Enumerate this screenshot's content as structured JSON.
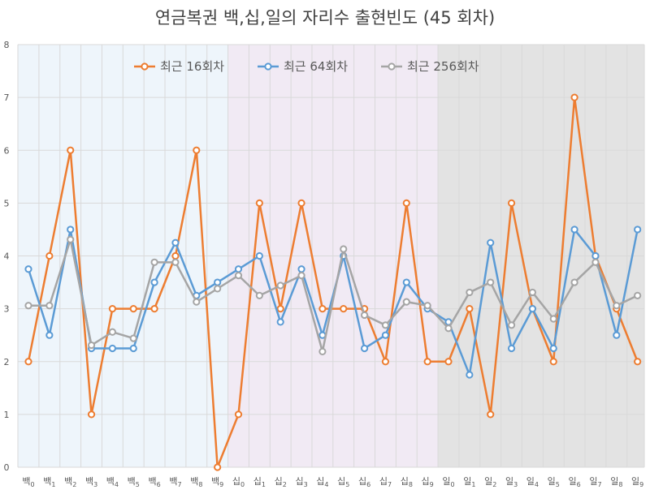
{
  "chart_data": {
    "type": "line",
    "title": "연금복권 백,십,일의 자리수 출현빈도 (45 회차)",
    "xlabel": "",
    "ylabel": "",
    "ylim": [
      0,
      8
    ],
    "yticks": [
      0,
      1,
      2,
      3,
      4,
      5,
      6,
      7,
      8
    ],
    "grid": true,
    "legend_position": "top",
    "categories": [
      "백0",
      "백1",
      "백2",
      "백3",
      "백4",
      "백5",
      "백6",
      "백7",
      "백8",
      "백9",
      "십0",
      "십1",
      "십2",
      "십3",
      "십4",
      "십5",
      "십6",
      "십7",
      "십8",
      "십9",
      "일0",
      "일1",
      "일2",
      "일3",
      "일4",
      "일5",
      "일6",
      "일7",
      "일8",
      "일9"
    ],
    "category_label_parts": [
      [
        "백",
        "0"
      ],
      [
        "백",
        "1"
      ],
      [
        "백",
        "2"
      ],
      [
        "백",
        "3"
      ],
      [
        "백",
        "4"
      ],
      [
        "백",
        "5"
      ],
      [
        "백",
        "6"
      ],
      [
        "백",
        "7"
      ],
      [
        "백",
        "8"
      ],
      [
        "백",
        "9"
      ],
      [
        "십",
        "0"
      ],
      [
        "십",
        "1"
      ],
      [
        "십",
        "2"
      ],
      [
        "십",
        "3"
      ],
      [
        "십",
        "4"
      ],
      [
        "십",
        "5"
      ],
      [
        "십",
        "6"
      ],
      [
        "십",
        "7"
      ],
      [
        "십",
        "8"
      ],
      [
        "십",
        "9"
      ],
      [
        "일",
        "0"
      ],
      [
        "일",
        "1"
      ],
      [
        "일",
        "2"
      ],
      [
        "일",
        "3"
      ],
      [
        "일",
        "4"
      ],
      [
        "일",
        "5"
      ],
      [
        "일",
        "6"
      ],
      [
        "일",
        "7"
      ],
      [
        "일",
        "8"
      ],
      [
        "일",
        "9"
      ]
    ],
    "bands": [
      {
        "from": "백0",
        "to": "백9",
        "color": "#eef5fb"
      },
      {
        "from": "십0",
        "to": "십9",
        "color": "#f1eaf4"
      },
      {
        "from": "일0",
        "to": "일9",
        "color": "#e3e3e3"
      }
    ],
    "series": [
      {
        "name": "최근 16회차",
        "color": "#ed7d31",
        "values": [
          2,
          4,
          6,
          1,
          3,
          3,
          3,
          4,
          6,
          0,
          1,
          5,
          3,
          5,
          3,
          3,
          3,
          2,
          5,
          2,
          2,
          3,
          1,
          5,
          3,
          2,
          7,
          4,
          3,
          2
        ]
      },
      {
        "name": "최근 64회차",
        "color": "#5b9bd5",
        "values": [
          3.75,
          2.5,
          4.5,
          2.25,
          2.25,
          2.25,
          3.5,
          4.25,
          3.25,
          3.5,
          3.75,
          4.0,
          2.75,
          3.75,
          2.5,
          4.0,
          2.25,
          2.5,
          3.5,
          3.0,
          2.75,
          1.75,
          4.25,
          2.25,
          3.0,
          2.25,
          4.5,
          4.0,
          2.5,
          4.5
        ]
      },
      {
        "name": "최근 256회차",
        "color": "#a5a5a5",
        "values": [
          3.06,
          3.06,
          4.31,
          2.31,
          2.56,
          2.44,
          3.88,
          3.88,
          3.13,
          3.38,
          3.63,
          3.25,
          3.44,
          3.63,
          2.19,
          4.13,
          2.88,
          2.69,
          3.13,
          3.06,
          2.63,
          3.31,
          3.5,
          2.69,
          3.31,
          2.81,
          3.5,
          3.88,
          3.06,
          3.25
        ]
      }
    ]
  }
}
